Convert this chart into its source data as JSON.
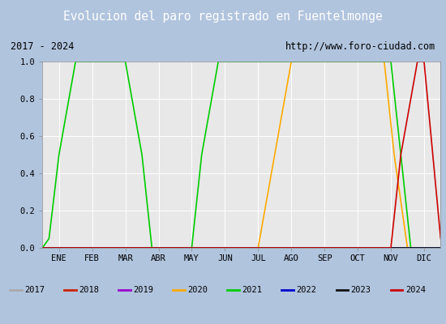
{
  "title": "Evolucion del paro registrado en Fuentelmonge",
  "subtitle_left": "2017 - 2024",
  "subtitle_right": "http://www.foro-ciudad.com",
  "title_bg_color": "#4466bb",
  "x_labels": [
    "ENE",
    "FEB",
    "MAR",
    "ABR",
    "MAY",
    "JUN",
    "JUL",
    "AGO",
    "SEP",
    "OCT",
    "NOV",
    "DIC"
  ],
  "yticks": [
    0.0,
    0.2,
    0.4,
    0.6,
    0.8,
    1.0
  ],
  "legend_order": [
    "2017",
    "2018",
    "2019",
    "2020",
    "2021",
    "2022",
    "2023",
    "2024"
  ],
  "legend_colors": {
    "2017": "#aaaaaa",
    "2018": "#cc2200",
    "2019": "#9900cc",
    "2020": "#ffaa00",
    "2021": "#00cc00",
    "2022": "#0000cc",
    "2023": "#111111",
    "2024": "#cc0000"
  },
  "series": {
    "2017": {
      "color": "#aaaaaa",
      "x": [
        -0.5,
        11.5
      ],
      "y": [
        0,
        0
      ]
    },
    "2018": {
      "color": "#cc2200",
      "x": [
        -0.5,
        11.5
      ],
      "y": [
        0,
        0
      ]
    },
    "2019": {
      "color": "#9900cc",
      "x": [
        -0.5,
        11.5
      ],
      "y": [
        0,
        0
      ]
    },
    "2020": {
      "color": "#ffaa00",
      "x": [
        -0.5,
        5.7,
        6.0,
        6.5,
        7.0,
        9.8,
        10.1,
        10.5,
        11.5
      ],
      "y": [
        0,
        0,
        0,
        0.5,
        1.0,
        1.0,
        0.5,
        0.0,
        0
      ]
    },
    "2021": {
      "color": "#00cc00",
      "x": [
        -0.5,
        -0.3,
        0.0,
        0.5,
        1.0,
        2.0,
        2.5,
        2.8,
        3.5,
        4.0,
        4.3,
        4.8,
        5.0,
        7.0,
        9.5,
        10.0,
        10.3,
        10.6,
        11.5
      ],
      "y": [
        0,
        0.05,
        0.5,
        1.0,
        1.0,
        1.0,
        0.5,
        0.0,
        0.0,
        0.0,
        0.5,
        1.0,
        1.0,
        1.0,
        1.0,
        1.0,
        0.5,
        0.0,
        0
      ]
    },
    "2022": {
      "color": "#0000cc",
      "x": [
        -0.5,
        11.5
      ],
      "y": [
        0,
        0
      ]
    },
    "2023": {
      "color": "#111111",
      "x": [
        -0.5,
        11.5
      ],
      "y": [
        0,
        0
      ]
    },
    "2024": {
      "color": "#cc0000",
      "x": [
        -0.5,
        9.8,
        10.0,
        10.3,
        10.8,
        11.0,
        11.5
      ],
      "y": [
        0,
        0,
        0,
        0.5,
        1.0,
        1.0,
        0.05
      ]
    }
  }
}
